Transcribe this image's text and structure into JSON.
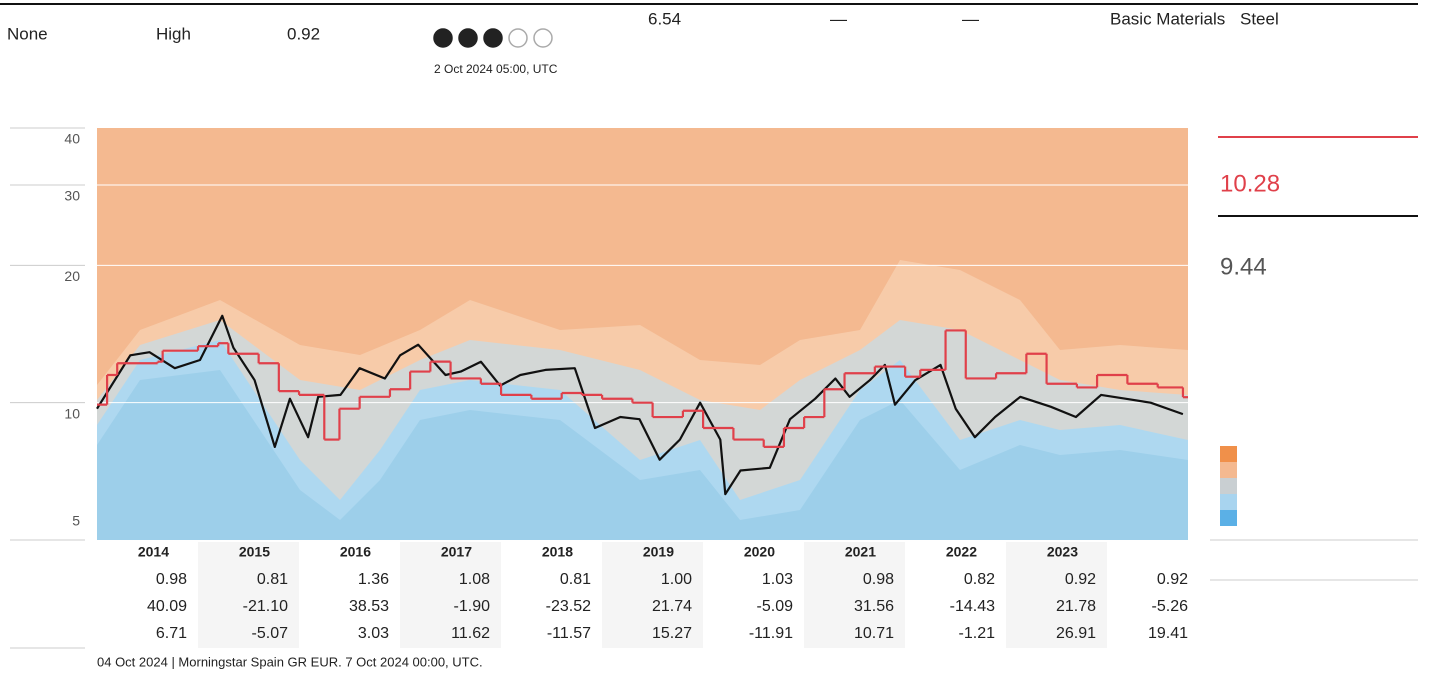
{
  "header": {
    "fields": [
      "None",
      "High",
      "0.92",
      "6.54",
      "—",
      "—",
      "Basic Materials",
      "Steel"
    ],
    "rating": 3,
    "rating_max": 5,
    "rating_date": "2 Oct 2024 05:00, UTC"
  },
  "chart_data": {
    "type": "line",
    "log_scale": true,
    "grid": true,
    "ylim": [
      5,
      40
    ],
    "yticks": [
      5,
      10,
      20,
      30,
      40
    ],
    "xlim": [
      2014,
      2024.8
    ],
    "series": [
      {
        "color": "#111111",
        "step": false,
        "x": [
          2014.0,
          2014.33,
          2014.52,
          2014.77,
          2015.02,
          2015.24,
          2015.35,
          2015.56,
          2015.76,
          2015.91,
          2016.09,
          2016.19,
          2016.41,
          2016.6,
          2016.85,
          2017.0,
          2017.18,
          2017.45,
          2017.6,
          2017.8,
          2017.99,
          2018.19,
          2018.44,
          2018.73,
          2018.93,
          2019.18,
          2019.37,
          2019.57,
          2019.77,
          2019.97,
          2020.17,
          2020.22,
          2020.37,
          2020.66,
          2020.86,
          2021.11,
          2021.31,
          2021.45,
          2021.65,
          2021.8,
          2021.9,
          2022.1,
          2022.35,
          2022.5,
          2022.69,
          2022.89,
          2023.14,
          2023.44,
          2023.69,
          2023.94,
          2024.18,
          2024.43,
          2024.75
        ],
        "values": [
          9.7,
          12.7,
          12.9,
          11.9,
          12.4,
          15.5,
          13.2,
          11.2,
          8.0,
          10.2,
          8.4,
          10.3,
          10.4,
          11.9,
          11.3,
          12.7,
          13.4,
          11.5,
          11.7,
          12.3,
          10.9,
          11.5,
          11.8,
          11.9,
          8.8,
          9.3,
          9.2,
          7.5,
          8.3,
          10.0,
          8.3,
          6.3,
          7.1,
          7.2,
          9.2,
          10.2,
          11.3,
          10.3,
          11.2,
          12.1,
          9.9,
          11.2,
          12.1,
          9.7,
          8.4,
          9.3,
          10.3,
          9.8,
          9.3,
          10.4,
          10.2,
          10.0,
          9.44
        ]
      },
      {
        "color": "#e0404a",
        "step": true,
        "x": [
          2014.0,
          2014.1,
          2014.2,
          2014.6,
          2014.65,
          2015.0,
          2015.2,
          2015.3,
          2015.6,
          2015.8,
          2016.0,
          2016.25,
          2016.4,
          2016.6,
          2016.9,
          2017.1,
          2017.3,
          2017.5,
          2017.8,
          2018.0,
          2018.3,
          2018.6,
          2018.8,
          2019.0,
          2019.3,
          2019.5,
          2019.8,
          2020.0,
          2020.3,
          2020.6,
          2020.8,
          2021.0,
          2021.2,
          2021.4,
          2021.7,
          2022.0,
          2022.15,
          2022.4,
          2022.6,
          2022.9,
          2023.2,
          2023.4,
          2023.7,
          2023.9,
          2024.2,
          2024.5,
          2024.75
        ],
        "values": [
          9.9,
          11.5,
          12.2,
          12.3,
          13.0,
          13.3,
          13.5,
          12.8,
          12.2,
          10.6,
          10.4,
          8.3,
          9.7,
          10.3,
          10.7,
          11.7,
          12.3,
          11.3,
          11.0,
          10.4,
          10.2,
          10.5,
          10.4,
          10.2,
          10.0,
          9.3,
          9.6,
          8.8,
          8.3,
          8.0,
          8.8,
          9.3,
          10.7,
          11.6,
          12.0,
          11.4,
          11.8,
          14.4,
          11.3,
          11.6,
          12.8,
          11.0,
          10.8,
          11.5,
          11.0,
          10.8,
          10.28
        ]
      }
    ]
  },
  "legend": {
    "values": [
      "10.28",
      "9.44"
    ],
    "swatches": [
      "#f0904a",
      "#f4b990",
      "#c9cfd2",
      "#a8d4ef",
      "#5bb0e6"
    ]
  },
  "table": {
    "columns": [
      "2014",
      "2015",
      "2016",
      "2017",
      "2018",
      "2019",
      "2020",
      "2021",
      "2022",
      "2023",
      null
    ],
    "rows": [
      [
        "0.98",
        "0.81",
        "1.36",
        "1.08",
        "0.81",
        "1.00",
        "1.03",
        "0.98",
        "0.82",
        "0.92",
        "0.92"
      ],
      [
        "40.09",
        "-21.10",
        "38.53",
        "-1.90",
        "-23.52",
        "21.74",
        "-5.09",
        "31.56",
        "-14.43",
        "21.78",
        "-5.26"
      ],
      [
        "6.71",
        "-5.07",
        "3.03",
        "11.62",
        "-11.57",
        "15.27",
        "-11.91",
        "10.71",
        "-1.21",
        "26.91",
        "19.41"
      ]
    ]
  },
  "footer": "04 Oct 2024 |  Morningstar Spain GR EUR.  7 Oct 2024 00:00, UTC."
}
